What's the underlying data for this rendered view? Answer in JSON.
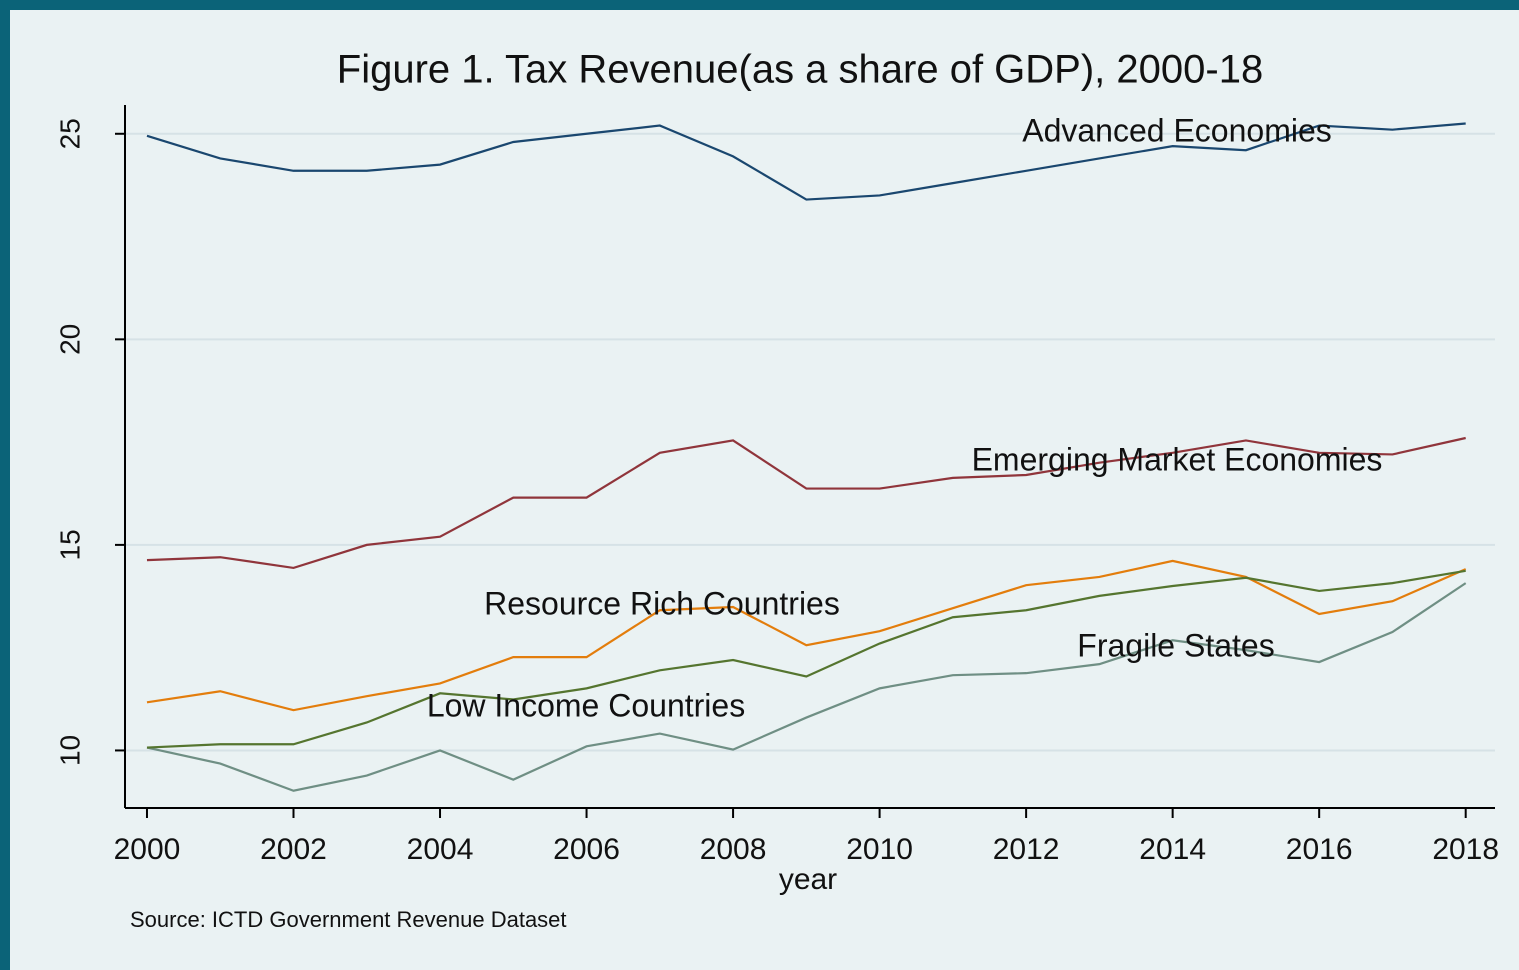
{
  "chart_data": {
    "type": "line",
    "title": "Figure 1. Tax Revenue(as a share of GDP), 2000-18",
    "xlabel": "year",
    "note": "Source: ICTD Government Revenue Dataset",
    "x": [
      2000,
      2001,
      2002,
      2003,
      2004,
      2005,
      2006,
      2007,
      2008,
      2009,
      2010,
      2011,
      2012,
      2013,
      2014,
      2015,
      2016,
      2017,
      2018
    ],
    "series": [
      {
        "name": "Advanced Economies",
        "color": "#1a476f",
        "values": [
          24.95,
          24.4,
          24.1,
          24.1,
          24.25,
          24.8,
          25.0,
          25.2,
          24.45,
          23.4,
          23.5,
          23.8,
          24.1,
          24.4,
          24.7,
          24.6,
          25.2,
          25.1,
          25.25
        ]
      },
      {
        "name": "Emerging Market Economies",
        "color": "#90353b",
        "values": [
          14.63,
          14.7,
          14.44,
          15.0,
          15.2,
          16.15,
          16.15,
          17.24,
          17.54,
          16.37,
          16.37,
          16.63,
          16.7,
          17.0,
          17.24,
          17.54,
          17.24,
          17.2,
          17.6
        ]
      },
      {
        "name": "Resource Rich Countries",
        "color": "#e37d0c",
        "values": [
          11.17,
          11.44,
          10.98,
          11.32,
          11.63,
          12.27,
          12.27,
          13.41,
          13.49,
          12.56,
          12.9,
          13.46,
          14.02,
          14.22,
          14.61,
          14.22,
          13.32,
          13.63,
          14.41
        ]
      },
      {
        "name": "Fragile States",
        "color": "#6f8f84",
        "values": [
          10.07,
          9.68,
          9.02,
          9.39,
          10.0,
          9.29,
          10.1,
          10.41,
          10.02,
          10.8,
          11.51,
          11.83,
          11.88,
          12.1,
          12.68,
          12.44,
          12.15,
          12.88,
          14.07
        ]
      },
      {
        "name": "Low Income Countries",
        "color": "#55752f",
        "values": [
          10.07,
          10.15,
          10.15,
          10.68,
          11.39,
          11.24,
          11.51,
          11.95,
          12.2,
          11.8,
          12.6,
          13.24,
          13.41,
          13.76,
          14.0,
          14.2,
          13.88,
          14.07,
          14.37
        ]
      }
    ],
    "xlim": [
      1999.7,
      2018.4
    ],
    "xticks": [
      2000,
      2002,
      2004,
      2006,
      2008,
      2010,
      2012,
      2014,
      2016,
      2018
    ],
    "ylim": [
      8.6,
      25.7
    ],
    "yticks": [
      10,
      15,
      20,
      25
    ],
    "grid": true
  }
}
